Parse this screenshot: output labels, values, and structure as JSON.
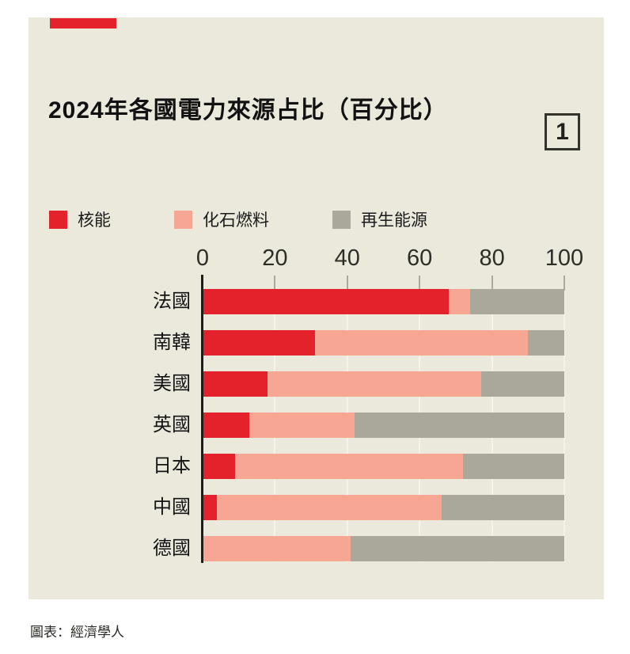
{
  "page": {
    "title": "2024年各國電力來源占比（百分比）",
    "figure_number": "1",
    "source": "圖表：經濟學人"
  },
  "colors": {
    "accent_red": "#e3222b",
    "nuclear": "#e3222b",
    "fossil": "#f6a693",
    "renewable": "#a9a89b",
    "card_background": "#ebe8dc",
    "page_background": "#ffffff"
  },
  "legend": [
    {
      "label": "核能",
      "color": "#e3222b"
    },
    {
      "label": "化石燃料",
      "color": "#f6a693"
    },
    {
      "label": "再生能源",
      "color": "#a9a89b"
    }
  ],
  "chart_data": {
    "type": "bar",
    "orientation": "horizontal",
    "stacked": true,
    "title": "2024年各國電力來源占比（百分比）",
    "categories": [
      "法國",
      "南韓",
      "美國",
      "英國",
      "日本",
      "中國",
      "德國"
    ],
    "series": [
      {
        "name": "核能",
        "color": "#e3222b",
        "values": [
          68,
          31,
          18,
          13,
          9,
          4,
          0
        ]
      },
      {
        "name": "化石燃料",
        "color": "#f6a693",
        "values": [
          6,
          59,
          59,
          29,
          63,
          62,
          41
        ]
      },
      {
        "name": "再生能源",
        "color": "#a9a89b",
        "values": [
          26,
          10,
          23,
          58,
          28,
          34,
          59
        ]
      }
    ],
    "xlim": [
      0,
      100
    ],
    "x_ticks": [
      0,
      20,
      40,
      60,
      80,
      100
    ],
    "grid": true,
    "legend_position": "top",
    "source": "圖表：經濟學人"
  }
}
